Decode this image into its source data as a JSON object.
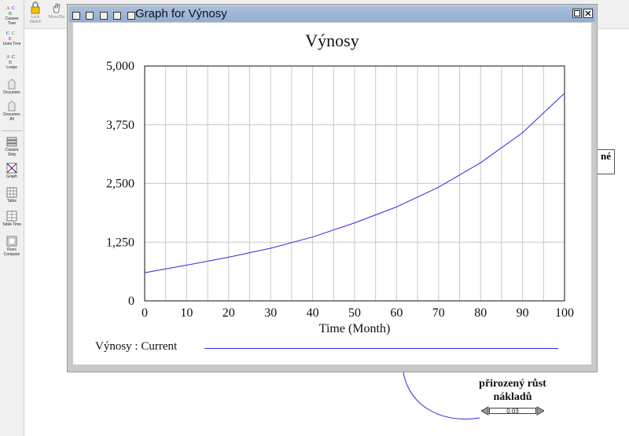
{
  "toolbar": {
    "lock_label": "Lock",
    "lock_sublabel": "Sketch",
    "move_label": "Move/Siz"
  },
  "left_toolbar": [
    {
      "label": "Causes Tree",
      "icon": "causes-tree-icon"
    },
    {
      "label": "Uses Tree",
      "icon": "uses-tree-icon"
    },
    {
      "label": "Loops",
      "icon": "loops-icon"
    },
    {
      "label": "Documen",
      "icon": "document-icon"
    },
    {
      "label": "Documen All",
      "icon": "document-all-icon"
    },
    {
      "label": "Causes Strip",
      "icon": "causes-strip-icon"
    },
    {
      "label": "Graph",
      "icon": "graph-icon"
    },
    {
      "label": "Table",
      "icon": "table-icon"
    },
    {
      "label": "Table Time",
      "icon": "table-time-icon"
    },
    {
      "label": "Runs Compare",
      "icon": "runs-compare-icon"
    }
  ],
  "sketch": {
    "partial_box_text": "né",
    "rate_label_line1": "přirozený růst",
    "rate_label_line2": "nákladů",
    "slider_value": "0.03"
  },
  "window": {
    "title": "Graph for Výnosy"
  },
  "chart_data": {
    "type": "line",
    "title": "Výnosy",
    "xlabel": "Time (Month)",
    "ylabel": "",
    "xlim": [
      0,
      100
    ],
    "ylim": [
      0,
      5000
    ],
    "x_ticks": [
      0,
      10,
      20,
      30,
      40,
      50,
      60,
      70,
      80,
      90,
      100
    ],
    "y_ticks": [
      0,
      1250,
      2500,
      3750,
      5000
    ],
    "y_tick_labels": [
      "0",
      "1,250",
      "2,500",
      "3,750",
      "5,000"
    ],
    "grid": true,
    "legend": "bottom",
    "series": [
      {
        "name": "Výnosy : Current",
        "color": "#2a2ad8",
        "x": [
          0,
          10,
          20,
          30,
          40,
          50,
          60,
          70,
          80,
          90,
          100
        ],
        "values": [
          600,
          760,
          930,
          1120,
          1360,
          1660,
          2000,
          2420,
          2940,
          3580,
          4420
        ]
      }
    ]
  }
}
